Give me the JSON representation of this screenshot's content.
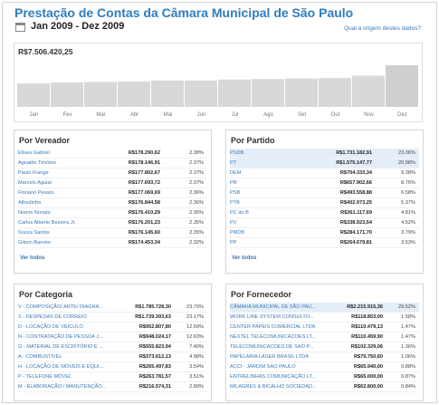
{
  "header": {
    "title": "Prestação de Contas da Câmara Municipal de São Paulo",
    "period": "Jan 2009 - Dez 2009",
    "origin_link": "Qual a origem destes dados?"
  },
  "chart_data": {
    "type": "bar",
    "title": "R$7.506.420,25",
    "categories": [
      "Jan",
      "Fev",
      "Mar",
      "Abr",
      "Mai",
      "Jun",
      "Jul",
      "Ago",
      "Set",
      "Out",
      "Nov",
      "Dez"
    ],
    "values": [
      48,
      50,
      51,
      52,
      54,
      54,
      56,
      57,
      58,
      59,
      64,
      85
    ],
    "ylim": [
      0,
      100
    ],
    "colors": {
      "bar": "#d8d8d8",
      "bar_last": "#cfcfcf",
      "separator": "#ffffff"
    }
  },
  "vereador": {
    "heading": "Por Vereador",
    "rows": [
      {
        "name": "Eliseu Gabriel",
        "value": "R$178.290,62",
        "pct": "2.38%"
      },
      {
        "name": "Agnaldo Timóteo",
        "value": "R$178.146,91",
        "pct": "2.37%"
      },
      {
        "name": "Paulo Frange",
        "value": "R$177.802,67",
        "pct": "2.37%"
      },
      {
        "name": "Marcelo Aguiar",
        "value": "R$177.693,72",
        "pct": "2.37%"
      },
      {
        "name": "Floriano Pesaro",
        "value": "R$177.069,69",
        "pct": "2.36%"
      },
      {
        "name": "Alfredinho",
        "value": "R$176.844,58",
        "pct": "2.36%"
      },
      {
        "name": "Noemi Nonato",
        "value": "R$176.410,29",
        "pct": "2.35%"
      },
      {
        "name": "Carlos Alberto Bezerra Jr.",
        "value": "R$176.201,23",
        "pct": "2.35%"
      },
      {
        "name": "Souza Santos",
        "value": "R$176.145,60",
        "pct": "2.35%"
      },
      {
        "name": "Gilson Barreto",
        "value": "R$174.453,34",
        "pct": "2.32%"
      }
    ],
    "see_all": "Ver todos"
  },
  "partido": {
    "heading": "Por Partido",
    "rows": [
      {
        "name": "PSDB",
        "value": "R$1.731.182,91",
        "pct": "23.06%",
        "hl": true
      },
      {
        "name": "PT",
        "value": "R$1.575.147,77",
        "pct": "20.98%",
        "hl": true
      },
      {
        "name": "DEM",
        "value": "R$704.333,34",
        "pct": "9.38%"
      },
      {
        "name": "PR",
        "value": "R$657.902,66",
        "pct": "8.76%"
      },
      {
        "name": "PSB",
        "value": "R$493.558,88",
        "pct": "6.58%"
      },
      {
        "name": "PTB",
        "value": "R$402.973,25",
        "pct": "5.37%"
      },
      {
        "name": "PC do B",
        "value": "R$361.117,69",
        "pct": "4.81%"
      },
      {
        "name": "PV",
        "value": "R$338.923,54",
        "pct": "4.52%"
      },
      {
        "name": "PMDB",
        "value": "R$284.171,70",
        "pct": "3.79%"
      },
      {
        "name": "PP",
        "value": "R$264.679,81",
        "pct": "3.53%"
      }
    ],
    "see_all": "Ver todos"
  },
  "categoria": {
    "heading": "Por Categoria",
    "rows": [
      {
        "name": "V - COMPOSIÇÃO/ ARTE/ DIAGRA...",
        "value": "R$1.785.728,30",
        "pct": "23.79%"
      },
      {
        "name": "S - DESPESAS DE CORREIO",
        "value": "R$1.739.393,63",
        "pct": "23.17%"
      },
      {
        "name": "D - LOCAÇÃO DE VEÍCULO",
        "value": "R$952.807,80",
        "pct": "12.69%"
      },
      {
        "name": "N - CONTRATAÇÃO DE PESSOA J...",
        "value": "R$948.024,17",
        "pct": "12.63%"
      },
      {
        "name": "G - MATERIAL DE ESCRITÓRIO E ...",
        "value": "R$555.823,94",
        "pct": "7.40%"
      },
      {
        "name": "A - COMBUSTÍVEL",
        "value": "R$373.612,13",
        "pct": "4.98%"
      },
      {
        "name": "H - LOCAÇÃO DE MÓVEIS E EQUI...",
        "value": "R$265.497,83",
        "pct": "3.54%"
      },
      {
        "name": "P - TELEFONE MÓVEL",
        "value": "R$263.781,57",
        "pct": "3.51%"
      },
      {
        "name": "M - ELABORAÇÃO / MANUTENÇÃO...",
        "value": "R$216.574,31",
        "pct": "2.89%"
      }
    ]
  },
  "fornecedor": {
    "heading": "Por Fornecedor",
    "rows": [
      {
        "name": "CÂMARA MUNICIPAL DE SÃO PAU...",
        "value": "R$2.215.915,36",
        "pct": "29.52%",
        "hl": true
      },
      {
        "name": "WORK LINE SYSTEM CONSULTO...",
        "value": "R$118.853,00",
        "pct": "1.58%"
      },
      {
        "name": "CENTER PAPÉIS COMERCIAL LTDA",
        "value": "R$110.479,13",
        "pct": "1.47%"
      },
      {
        "name": "NEXTEL TELECOMUNICACOES LT...",
        "value": "R$110.459,90",
        "pct": "1.47%"
      },
      {
        "name": "TELECOMUNICACOES DE SAO P...",
        "value": "R$102.329,06",
        "pct": "1.36%"
      },
      {
        "name": "PAPELARIA LASER BRASIL LTDA",
        "value": "R$79.750,60",
        "pct": "1.06%"
      },
      {
        "name": "ACCI - JARDIM SAO PAULO",
        "value": "R$65.940,00",
        "pct": "0.88%"
      },
      {
        "name": "ENTRELINHAS COMUNICAÇÃO LT...",
        "value": "R$65.000,00",
        "pct": "0.87%"
      },
      {
        "name": "MILAGRES & BICALHO SOCIEDAD...",
        "value": "R$62.800,00",
        "pct": "0.84%"
      }
    ]
  }
}
